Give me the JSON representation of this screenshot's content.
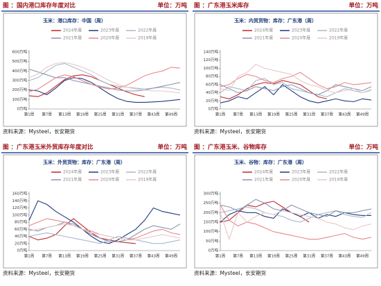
{
  "chart_data": [
    {
      "type": "line",
      "header": "图 ：国内港口库存年度对比",
      "unit": "单位：万吨",
      "title": "玉米：港口库存：中国（周）",
      "source": "资料来源：Mysteel，长安期货",
      "categories": [
        "第1周",
        null,
        "第7周",
        null,
        "第13周",
        null,
        "第19周",
        null,
        "第25周",
        null,
        "第31周",
        null,
        "第37周",
        null,
        "第43周",
        null,
        "第49周",
        null
      ],
      "ylim": [
        0,
        600
      ],
      "yticks": [
        {
          "value": 0,
          "label": "0万吨"
        },
        {
          "value": 100,
          "label": "100万吨"
        },
        {
          "value": 200,
          "label": "200万吨"
        },
        {
          "value": 300,
          "label": "300万吨"
        },
        {
          "value": 400,
          "label": "400万吨"
        },
        {
          "value": 500,
          "label": "500万吨"
        },
        {
          "value": 600,
          "label": "600万吨"
        }
      ],
      "grid": false,
      "series": [
        {
          "name": "2024年度",
          "color": "#c0272d",
          "values": [
            140,
            130,
            170,
            240,
            310,
            350,
            360,
            340,
            300,
            260,
            220,
            180,
            150,
            130,
            null,
            null,
            null,
            null
          ]
        },
        {
          "name": "2023年度",
          "color": "#1f3b7a",
          "values": [
            200,
            190,
            150,
            220,
            300,
            330,
            320,
            280,
            220,
            160,
            110,
            80,
            70,
            70,
            75,
            80,
            90,
            100
          ]
        },
        {
          "name": "2022年度",
          "color": "#a9b8cc",
          "values": [
            300,
            330,
            400,
            460,
            480,
            440,
            400,
            360,
            300,
            260,
            240,
            230,
            220,
            210,
            220,
            230,
            220,
            200
          ]
        },
        {
          "name": "2021年度",
          "color": "#8797b0",
          "values": [
            420,
            390,
            360,
            330,
            330,
            300,
            280,
            260,
            240,
            220,
            200,
            190,
            190,
            200,
            220,
            240,
            260,
            280
          ]
        },
        {
          "name": "2020年度",
          "color": "#e8888a",
          "values": [
            180,
            210,
            270,
            330,
            360,
            340,
            300,
            260,
            230,
            210,
            220,
            250,
            300,
            350,
            380,
            400,
            440,
            430
          ]
        },
        {
          "name": "2019年度",
          "color": "#e8c8c8",
          "values": [
            330,
            370,
            440,
            480,
            490,
            470,
            440,
            400,
            350,
            300,
            260,
            230,
            210,
            200,
            190,
            190,
            180,
            170
          ]
        }
      ]
    },
    {
      "type": "line",
      "header": "图 ：广东港玉米库存",
      "unit": "单位：万吨",
      "title": "玉米：内贸货物：库存：广东港（周）",
      "source": "资料来源：Mysteel，长安期货",
      "categories": [
        "第1周",
        null,
        "第7周",
        null,
        "第13周",
        null,
        "第19周",
        null,
        "第25周",
        null,
        "第31周",
        null,
        "第37周",
        null,
        "第43周",
        null,
        "第49周",
        null
      ],
      "ylim": [
        0,
        140
      ],
      "yticks": [
        {
          "value": 0,
          "label": "0万吨"
        },
        {
          "value": 20,
          "label": "20万吨"
        },
        {
          "value": 40,
          "label": "40万吨"
        },
        {
          "value": 60,
          "label": "60万吨"
        },
        {
          "value": 80,
          "label": "80万吨"
        },
        {
          "value": 100,
          "label": "100万吨"
        },
        {
          "value": 120,
          "label": "120万吨"
        },
        {
          "value": 140,
          "label": "140万吨"
        }
      ],
      "grid": false,
      "series": [
        {
          "name": "2024年度",
          "color": "#c0272d",
          "values": [
            30,
            25,
            35,
            50,
            60,
            65,
            62,
            70,
            65,
            60,
            45,
            30,
            25,
            null,
            null,
            null,
            null,
            null
          ]
        },
        {
          "name": "2023年度",
          "color": "#1f3b7a",
          "values": [
            15,
            20,
            30,
            25,
            40,
            55,
            35,
            60,
            45,
            30,
            20,
            15,
            20,
            25,
            20,
            18,
            25,
            22
          ]
        },
        {
          "name": "2022年度",
          "color": "#a9b8cc",
          "values": [
            40,
            55,
            50,
            45,
            70,
            75,
            60,
            65,
            50,
            45,
            40,
            35,
            30,
            40,
            50,
            45,
            40,
            48
          ]
        },
        {
          "name": "2021年度",
          "color": "#8797b0",
          "values": [
            60,
            50,
            40,
            45,
            55,
            50,
            45,
            55,
            60,
            50,
            40,
            35,
            45,
            60,
            55,
            50,
            45,
            55
          ]
        },
        {
          "name": "2020年度",
          "color": "#e8888a",
          "values": [
            55,
            60,
            75,
            85,
            80,
            70,
            65,
            75,
            80,
            90,
            75,
            60,
            50,
            55,
            65,
            60,
            62,
            65
          ]
        },
        {
          "name": "2019年度",
          "color": "#e8c8c8",
          "values": [
            50,
            45,
            80,
            90,
            110,
            100,
            95,
            90,
            85,
            70,
            60,
            55,
            45,
            40,
            45,
            50,
            40,
            45
          ]
        }
      ]
    },
    {
      "type": "line",
      "header": "图 ：广东港玉米外贸库存年度对比",
      "unit": "单位：万吨",
      "title": "玉米：外贸货物：库存：广东港（周）",
      "source": "资料来源：Mysteel，长安期货",
      "categories": [
        "第1周",
        null,
        "第7周",
        null,
        "第13周",
        null,
        "第19周",
        null,
        "第25周",
        null,
        "第31周",
        null,
        "第37周",
        null,
        "第43周",
        null,
        "第49周",
        null
      ],
      "ylim": [
        0,
        160
      ],
      "yticks": [
        {
          "value": 0,
          "label": "0万吨"
        },
        {
          "value": 20,
          "label": "20万吨"
        },
        {
          "value": 40,
          "label": "40万吨"
        },
        {
          "value": 60,
          "label": "60万吨"
        },
        {
          "value": 80,
          "label": "80万吨"
        },
        {
          "value": 100,
          "label": "100万吨"
        },
        {
          "value": 120,
          "label": "120万吨"
        },
        {
          "value": 140,
          "label": "140万吨"
        },
        {
          "value": 160,
          "label": "160万吨"
        }
      ],
      "grid": false,
      "series": [
        {
          "name": "2024年度",
          "color": "#c0272d",
          "values": [
            40,
            30,
            35,
            45,
            70,
            90,
            70,
            50,
            35,
            30,
            25,
            22,
            20,
            null,
            null,
            null,
            null,
            null
          ]
        },
        {
          "name": "2023年度",
          "color": "#1f3b7a",
          "values": [
            85,
            140,
            130,
            110,
            95,
            80,
            60,
            40,
            25,
            20,
            30,
            45,
            60,
            85,
            120,
            110,
            105,
            100
          ]
        },
        {
          "name": "2022年度",
          "color": "#a9b8cc",
          "values": [
            40,
            45,
            50,
            45,
            40,
            35,
            30,
            25,
            20,
            30,
            40,
            35,
            30,
            25,
            20,
            20,
            25,
            30
          ]
        },
        {
          "name": "2021年度",
          "color": "#8797b0",
          "values": [
            60,
            55,
            65,
            70,
            80,
            75,
            60,
            45,
            35,
            25,
            25,
            30,
            45,
            60,
            70,
            65,
            60,
            75
          ]
        },
        {
          "name": "2020年度",
          "color": "#e8888a",
          "values": [
            70,
            80,
            90,
            85,
            80,
            70,
            60,
            55,
            45,
            40,
            35,
            30,
            35,
            45,
            55,
            60,
            50,
            45
          ]
        },
        {
          "name": "2019年度",
          "color": "#e8c8c8",
          "values": [
            55,
            60,
            65,
            70,
            75,
            70,
            60,
            50,
            45,
            40,
            35,
            30,
            30,
            35,
            40,
            45,
            40,
            35
          ]
        }
      ]
    },
    {
      "type": "line",
      "header": "图 ：广东港玉米、谷物库存",
      "unit": "单位：万吨",
      "title": "玉米、谷物：库存：广东港（周）",
      "source": "资料来源：Mysteel，长安期货",
      "categories": [
        "第1周",
        null,
        "第7周",
        null,
        "第13周",
        null,
        "第19周",
        null,
        "第25周",
        null,
        "第31周",
        null,
        "第37周",
        null,
        "第43周",
        null,
        "第49周",
        null
      ],
      "ylim": [
        0,
        300
      ],
      "yticks": [
        {
          "value": 0,
          "label": "0万吨"
        },
        {
          "value": 50,
          "label": "50万吨"
        },
        {
          "value": 100,
          "label": "100万吨"
        },
        {
          "value": 150,
          "label": "150万吨"
        },
        {
          "value": 200,
          "label": "200万吨"
        },
        {
          "value": 250,
          "label": "250万吨"
        },
        {
          "value": 300,
          "label": "300万吨"
        }
      ],
      "grid": false,
      "series": [
        {
          "name": "2024年度",
          "color": "#c0272d",
          "values": [
            150,
            160,
            200,
            240,
            230,
            250,
            260,
            230,
            200,
            180,
            150,
            null,
            null,
            null,
            null,
            null,
            null,
            null
          ]
        },
        {
          "name": "2023年度",
          "color": "#1f3b7a",
          "values": [
            150,
            190,
            210,
            200,
            200,
            180,
            170,
            220,
            200,
            180,
            200,
            170,
            190,
            180,
            200,
            190,
            185,
            185
          ]
        },
        {
          "name": "2022年度",
          "color": "#a9b8cc",
          "values": [
            200,
            210,
            220,
            230,
            220,
            200,
            190,
            180,
            160,
            150,
            170,
            190,
            200,
            210,
            190,
            180,
            175,
            200
          ]
        },
        {
          "name": "2021年度",
          "color": "#8797b0",
          "values": [
            240,
            230,
            210,
            240,
            270,
            250,
            220,
            210,
            240,
            220,
            200,
            190,
            180,
            210,
            200,
            200,
            210,
            220
          ]
        },
        {
          "name": "2020年度",
          "color": "#e8888a",
          "values": [
            240,
            160,
            130,
            150,
            140,
            120,
            100,
            90,
            80,
            70,
            60,
            60,
            70,
            80,
            90,
            70,
            60,
            70
          ]
        },
        {
          "name": "2019年度",
          "color": "#e8c8c8",
          "values": [
            200,
            60,
            200,
            150,
            180,
            200,
            190,
            210,
            200,
            190,
            180,
            170,
            150,
            140,
            120,
            110,
            130,
            140
          ]
        }
      ]
    }
  ]
}
